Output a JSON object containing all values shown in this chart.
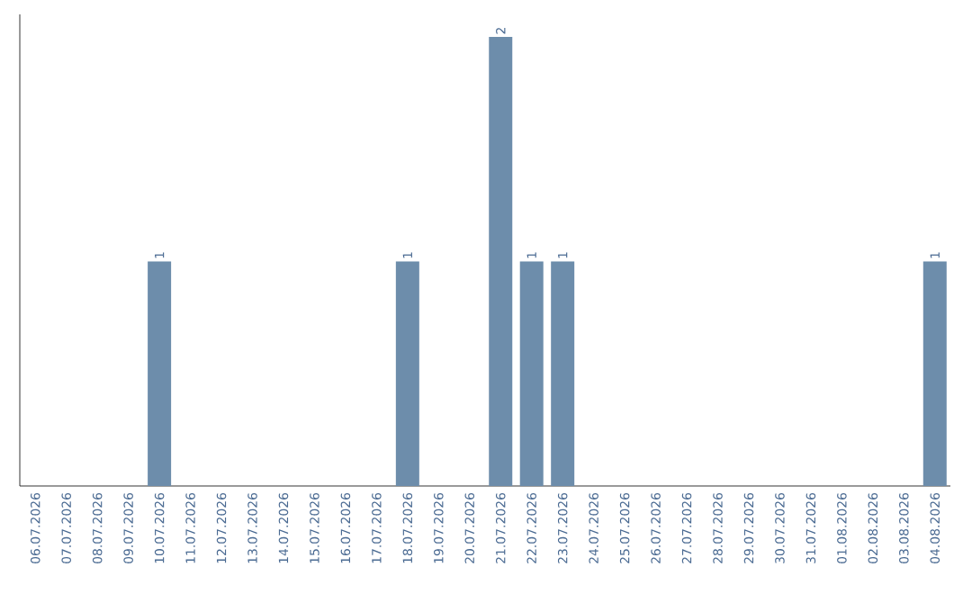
{
  "chart_data": {
    "type": "bar",
    "categories": [
      "06.07.2026",
      "07.07.2026",
      "08.07.2026",
      "09.07.2026",
      "10.07.2026",
      "11.07.2026",
      "12.07.2026",
      "13.07.2026",
      "14.07.2026",
      "15.07.2026",
      "16.07.2026",
      "17.07.2026",
      "18.07.2026",
      "19.07.2026",
      "20.07.2026",
      "21.07.2026",
      "22.07.2026",
      "23.07.2026",
      "24.07.2026",
      "25.07.2026",
      "26.07.2026",
      "27.07.2026",
      "28.07.2026",
      "29.07.2026",
      "30.07.2026",
      "31.07.2026",
      "01.08.2026",
      "02.08.2026",
      "03.08.2026",
      "04.08.2026"
    ],
    "values": [
      0,
      0,
      0,
      0,
      1,
      0,
      0,
      0,
      0,
      0,
      0,
      0,
      1,
      0,
      0,
      2,
      1,
      1,
      0,
      0,
      0,
      0,
      0,
      0,
      0,
      0,
      0,
      0,
      0,
      1
    ],
    "color": "#6d8dab",
    "value_labels": [
      null,
      null,
      null,
      null,
      "1",
      null,
      null,
      null,
      null,
      null,
      null,
      null,
      "1",
      null,
      null,
      "2",
      "1",
      "1",
      null,
      null,
      null,
      null,
      null,
      null,
      null,
      null,
      null,
      null,
      null,
      "1"
    ]
  }
}
